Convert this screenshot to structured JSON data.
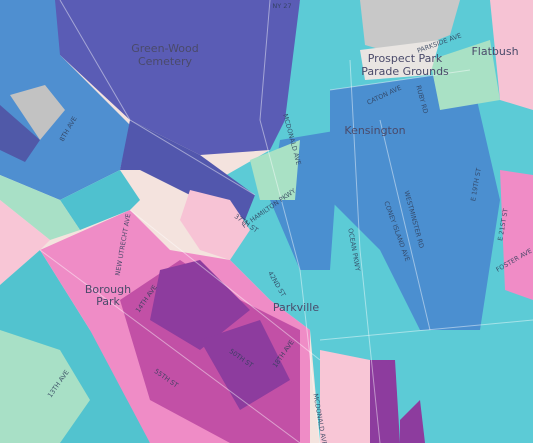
{
  "map": {
    "places": [
      "Green-Wood",
      "Cemetery",
      "Prospect Park",
      "Parade Grounds",
      "Flatbush",
      "Kensington",
      "Borough",
      "Park",
      "Parkville"
    ],
    "streets": [
      "NY 27",
      "PARKSIDE AVE",
      "CATON AVE",
      "MCDONALD AVE",
      "OCEAN PKWY",
      "CONEY ISLAND AVE",
      "WESTMINSTER RD",
      "RUBY RD",
      "E 19TH ST",
      "8TH AVE",
      "FT HAMILTON PKWY",
      "NEW UTRECHT AVE",
      "13TH AVE",
      "14TH AVE",
      "50TH ST",
      "55TH ST",
      "E 21ST ST",
      "FOSTER AVE",
      "18TH AVE",
      "37TH ST",
      "42ND ST",
      "MCDONALD AVE"
    ]
  }
}
